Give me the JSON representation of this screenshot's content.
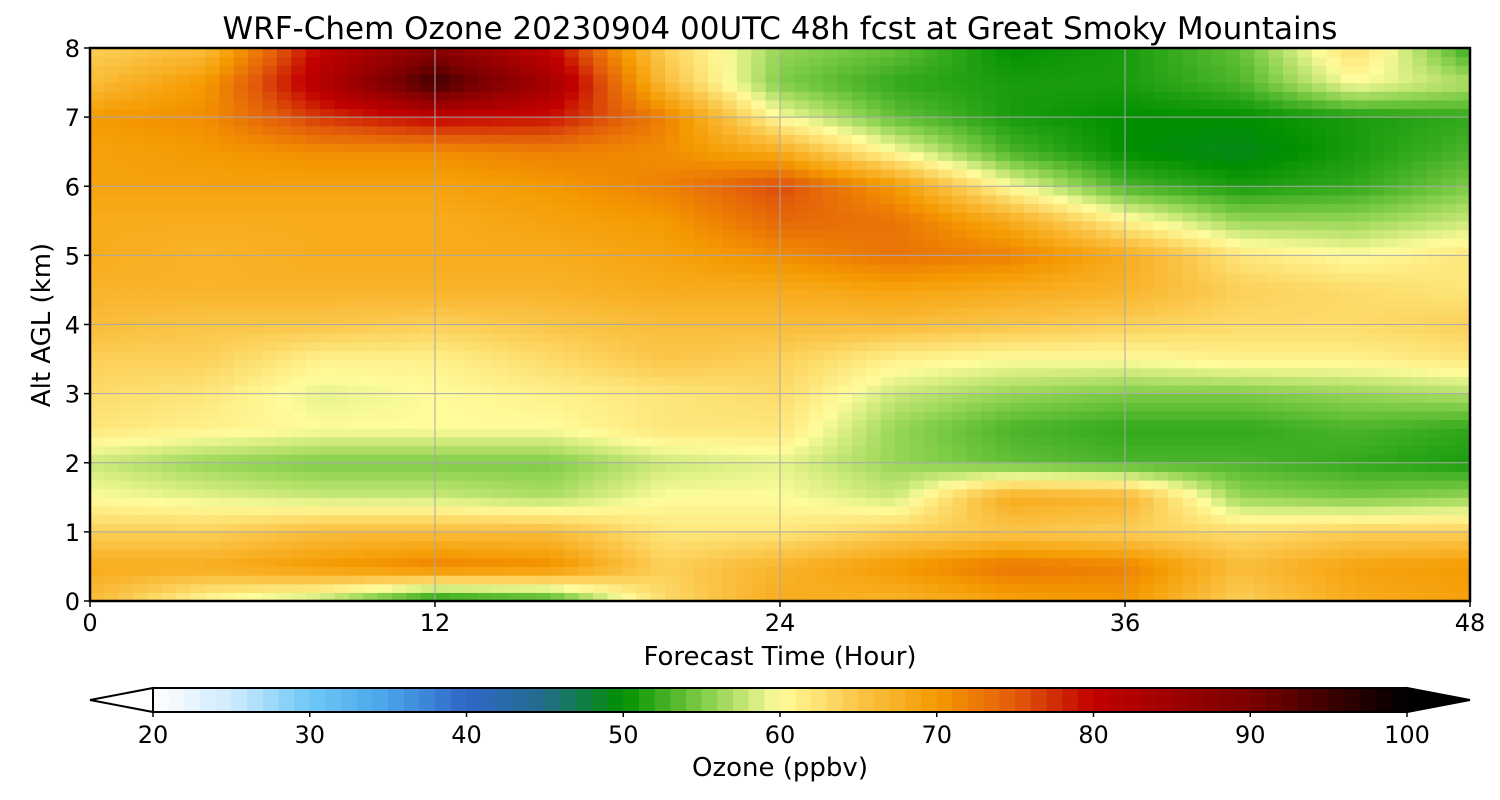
{
  "chart_data": {
    "type": "heatmap",
    "title": "WRF-Chem Ozone  20230904 00UTC 48h fcst at Great Smoky Mountains",
    "xlabel": "Forecast Time (Hour)",
    "ylabel": "Alt AGL (km)",
    "xlim": [
      0,
      48
    ],
    "ylim": [
      0,
      8
    ],
    "x_ticks": [
      0,
      12,
      24,
      36,
      48
    ],
    "y_ticks": [
      0,
      1,
      2,
      3,
      4,
      5,
      6,
      7,
      8
    ],
    "grid": true,
    "units": "ppbv",
    "x": [
      0,
      4,
      8,
      12,
      16,
      20,
      24,
      28,
      32,
      36,
      40,
      44,
      48
    ],
    "y": [
      0,
      0.5,
      1,
      1.5,
      2,
      2.5,
      3,
      3.5,
      4,
      4.5,
      5,
      5.5,
      6,
      6.5,
      7,
      7.5,
      8
    ],
    "z": [
      [
        66,
        60,
        57,
        50,
        52,
        63,
        68,
        67,
        69,
        70,
        64,
        68,
        69
      ],
      [
        68,
        68,
        70,
        72,
        71,
        64,
        67,
        70,
        73,
        72,
        66,
        69,
        70
      ],
      [
        64,
        64,
        66,
        66,
        66,
        62,
        62,
        64,
        65,
        64,
        63,
        64,
        64
      ],
      [
        60,
        59,
        58,
        58,
        57,
        60,
        60,
        58,
        68,
        67,
        56,
        55,
        56
      ],
      [
        58,
        56,
        55,
        55,
        55,
        58,
        59,
        56,
        54,
        53,
        53,
        52,
        51
      ],
      [
        62,
        61,
        60,
        60,
        60,
        62,
        62,
        56,
        53,
        52,
        52,
        53,
        52
      ],
      [
        63,
        62,
        59,
        60,
        61,
        62,
        63,
        58,
        56,
        55,
        55,
        56,
        57
      ],
      [
        64,
        64,
        61,
        61,
        63,
        65,
        64,
        61,
        60,
        60,
        61,
        61,
        62
      ],
      [
        66,
        65,
        65,
        64,
        65,
        66,
        66,
        66,
        65,
        64,
        63,
        63,
        64
      ],
      [
        67,
        67,
        67,
        67,
        67,
        68,
        68,
        69,
        68,
        67,
        64,
        63,
        62
      ],
      [
        68,
        67,
        68,
        68,
        68,
        69,
        71,
        73,
        72,
        68,
        62,
        60,
        62
      ],
      [
        68,
        68,
        68,
        68,
        69,
        70,
        74,
        73,
        68,
        61,
        56,
        56,
        58
      ],
      [
        69,
        69,
        69,
        69,
        70,
        72,
        76,
        70,
        60,
        53,
        51,
        52,
        55
      ],
      [
        69,
        70,
        71,
        71,
        72,
        71,
        68,
        60,
        53,
        50,
        49,
        51,
        53
      ],
      [
        70,
        71,
        77,
        80,
        79,
        72,
        60,
        54,
        51,
        50,
        50,
        51,
        52
      ],
      [
        66,
        70,
        82,
        95,
        84,
        66,
        55,
        52,
        51,
        51,
        53,
        60,
        57
      ],
      [
        64,
        66,
        80,
        88,
        80,
        64,
        56,
        54,
        50,
        51,
        54,
        63,
        52
      ]
    ],
    "colorbar": {
      "label": "Ozone  (ppbv)",
      "min": 20,
      "max": 100,
      "ticks": [
        20,
        30,
        40,
        50,
        60,
        70,
        80,
        90,
        100
      ],
      "extend": "both",
      "stops": [
        {
          "v": 20,
          "c": "#ffffff"
        },
        {
          "v": 25,
          "c": "#cfeafc"
        },
        {
          "v": 30,
          "c": "#6ec8f6"
        },
        {
          "v": 35,
          "c": "#4aa3e8"
        },
        {
          "v": 40,
          "c": "#2f66c8"
        },
        {
          "v": 45,
          "c": "#226d8a"
        },
        {
          "v": 50,
          "c": "#009000"
        },
        {
          "v": 55,
          "c": "#7dcc45"
        },
        {
          "v": 60,
          "c": "#fffc9c"
        },
        {
          "v": 65,
          "c": "#fbc548"
        },
        {
          "v": 70,
          "c": "#f59a00"
        },
        {
          "v": 75,
          "c": "#e25b0a"
        },
        {
          "v": 80,
          "c": "#c20000"
        },
        {
          "v": 90,
          "c": "#7a0000"
        },
        {
          "v": 100,
          "c": "#000000"
        }
      ]
    }
  }
}
